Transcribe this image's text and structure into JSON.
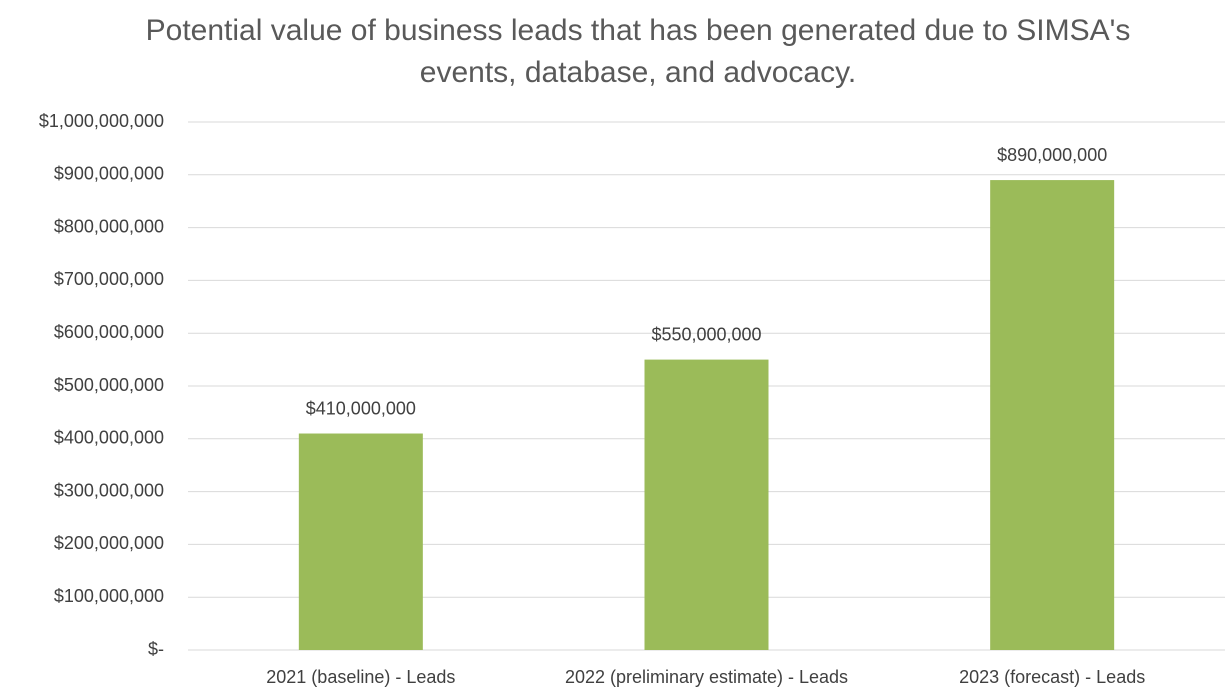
{
  "chart_data": {
    "type": "bar",
    "title": "Potential value of business leads that has been generated due to SIMSA's events, database, and advocacy.",
    "categories": [
      "2021 (baseline) - Leads",
      "2022 (preliminary estimate) - Leads",
      "2023 (forecast) - Leads"
    ],
    "values": [
      410000000,
      550000000,
      890000000
    ],
    "value_labels": [
      "$410,000,000",
      "$550,000,000",
      "$890,000,000"
    ],
    "color": "#9bbb59",
    "ylim": [
      0,
      1000000000
    ],
    "yticks": [
      {
        "value": 0,
        "label": "$-"
      },
      {
        "value": 100000000,
        "label": "$100,000,000"
      },
      {
        "value": 200000000,
        "label": "$200,000,000"
      },
      {
        "value": 300000000,
        "label": "$300,000,000"
      },
      {
        "value": 400000000,
        "label": "$400,000,000"
      },
      {
        "value": 500000000,
        "label": "$500,000,000"
      },
      {
        "value": 600000000,
        "label": "$600,000,000"
      },
      {
        "value": 700000000,
        "label": "$700,000,000"
      },
      {
        "value": 800000000,
        "label": "$800,000,000"
      },
      {
        "value": 900000000,
        "label": "$900,000,000"
      },
      {
        "value": 1000000000,
        "label": "$1,000,000,000"
      }
    ],
    "grid": true
  }
}
